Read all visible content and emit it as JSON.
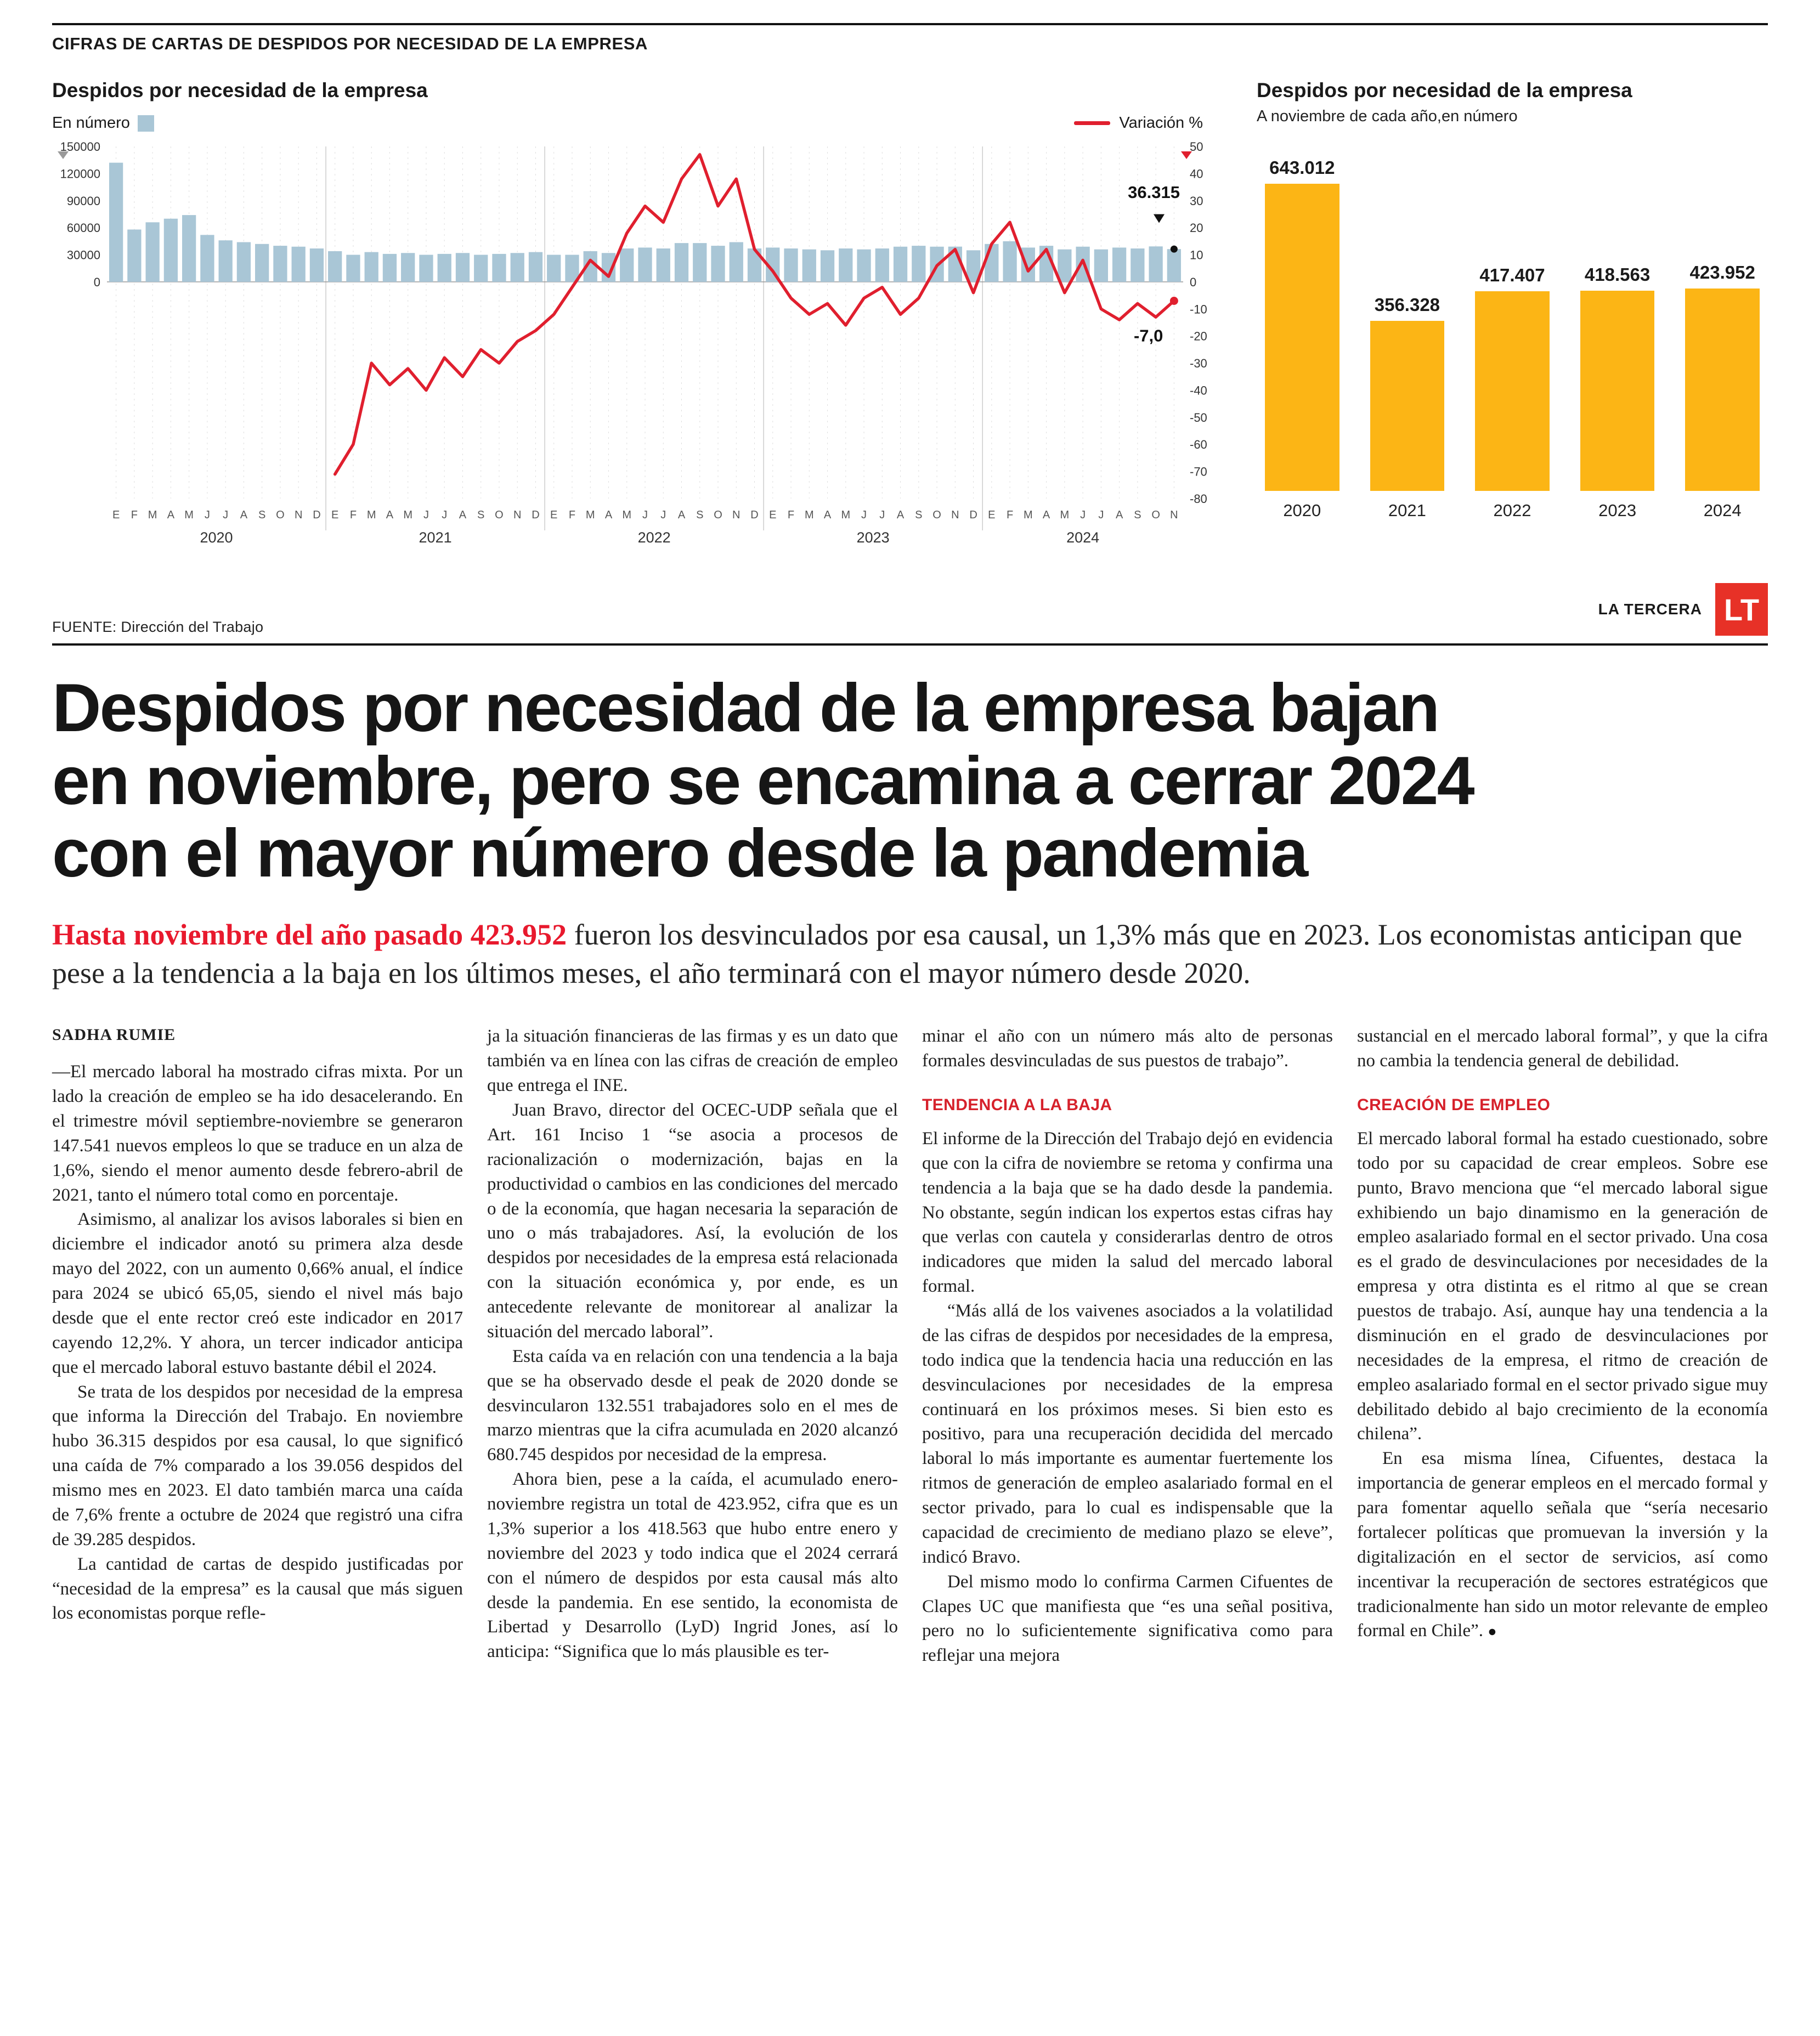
{
  "kicker": "CIFRAS DE CARTAS DE DESPIDOS POR NECESIDAD DE LA EMPRESA",
  "masthead": {
    "brand": "LA TERCERA",
    "logo": "LT"
  },
  "chart_data": [
    {
      "type": "bar",
      "title": "Despidos por necesidad de la empresa",
      "legend": [
        {
          "label": "En número",
          "color": "#a9c6d6",
          "kind": "square"
        },
        {
          "label": "Variación %",
          "color": "#e01f2e",
          "kind": "line"
        }
      ],
      "month_letters": [
        "E",
        "F",
        "M",
        "A",
        "M",
        "J",
        "J",
        "A",
        "S",
        "O",
        "N",
        "D"
      ],
      "years": [
        {
          "label": "2020",
          "months": 12
        },
        {
          "label": "2021",
          "months": 12
        },
        {
          "label": "2022",
          "months": 12
        },
        {
          "label": "2023",
          "months": 12
        },
        {
          "label": "2024",
          "months": 11
        }
      ],
      "bars": [
        132000,
        58000,
        66000,
        70000,
        74000,
        52000,
        46000,
        44000,
        42000,
        40000,
        39000,
        37000,
        34000,
        30000,
        33000,
        31000,
        32000,
        30000,
        31000,
        32000,
        30000,
        31000,
        32000,
        33000,
        30000,
        30000,
        34000,
        32000,
        37000,
        38000,
        37000,
        43000,
        43000,
        40000,
        44000,
        37000,
        38000,
        37000,
        36000,
        35000,
        37000,
        36000,
        37000,
        39000,
        40000,
        39000,
        39056,
        35000,
        42000,
        45000,
        38000,
        40000,
        36000,
        39000,
        36000,
        38000,
        37000,
        39285,
        36315
      ],
      "variation": [
        null,
        null,
        null,
        null,
        null,
        null,
        null,
        null,
        null,
        null,
        null,
        null,
        -71,
        -60,
        -30,
        -38,
        -32,
        -40,
        -28,
        -35,
        -25,
        -30,
        -22,
        -18,
        -12,
        -2,
        8,
        2,
        18,
        28,
        22,
        38,
        47,
        28,
        38,
        12,
        4,
        -6,
        -12,
        -8,
        -16,
        -6,
        -2,
        -12,
        -6,
        6,
        12,
        -4,
        14,
        22,
        4,
        12,
        -4,
        8,
        -10,
        -14,
        -8,
        -13,
        -7
      ],
      "left_axis_ticks": [
        150000,
        120000,
        90000,
        60000,
        30000,
        0
      ],
      "left_axis_max": 150000,
      "right_axis_ticks": [
        50,
        40,
        30,
        20,
        10,
        0,
        -10,
        -20,
        -30,
        -40,
        -50,
        -60,
        -70,
        -80
      ],
      "right_axis_range": [
        -80,
        50
      ],
      "annotations": {
        "last_bar_label": "36.315",
        "last_variation_label": "-7,0"
      },
      "bar_color": "#a9c6d6",
      "line_color": "#e01f2e",
      "source": "FUENTE: Dirección del Trabajo"
    },
    {
      "type": "bar",
      "title": "Despidos por necesidad de la empresa",
      "subtitle": "A noviembre de cada año,en número",
      "categories": [
        "2020",
        "2021",
        "2022",
        "2023",
        "2024"
      ],
      "values": [
        643012,
        356328,
        417407,
        418563,
        423952
      ],
      "value_labels": [
        "643.012",
        "356.328",
        "417.407",
        "418.563",
        "423.952"
      ],
      "bar_color": "#fcb515"
    }
  ],
  "headline_lines": [
    "Despidos por necesidad de la empresa bajan",
    "en noviembre, pero se encamina a cerrar 2024",
    "con el mayor número desde la pandemia"
  ],
  "lede": {
    "lead_red": "Hasta noviembre del año pasado 423.952",
    "rest": " fueron los desvinculados por esa causal, un 1,3% más que en 2023. Los economistas anticipan que pese a la tendencia a la baja en los últimos meses, el año terminará con el mayor número desde 2020."
  },
  "article": {
    "end_mark": "●",
    "columns": [
      {
        "blocks": [
          {
            "t": "byline",
            "text": "SADHA RUMIE"
          },
          {
            "t": "p",
            "cont": true,
            "text": "—El mercado laboral ha mostrado cifras mixta. Por un lado la creación de empleo se ha ido desacelerando. En el trimestre móvil septiembre-noviembre se generaron 147.541 nuevos empleos lo que se traduce en un alza de 1,6%, siendo el menor aumento desde febrero-abril de 2021, tanto el número total como en porcentaje."
          },
          {
            "t": "p",
            "text": "Asimismo, al analizar los avisos laborales si bien en diciembre el indicador anotó su primera alza desde mayo del 2022, con un aumento 0,66% anual, el índice para 2024 se ubicó 65,05, siendo el nivel más bajo desde que el ente rector creó este indicador en 2017 cayendo 12,2%. Y ahora, un tercer indicador anticipa que el mercado laboral estuvo bastante débil el 2024."
          },
          {
            "t": "p",
            "text": "Se trata de los despidos por necesidad de la empresa que informa la Dirección del Trabajo. En noviembre hubo 36.315 despidos por esa causal, lo que significó una caída de 7% comparado a los 39.056 despidos del mismo mes en 2023. El dato también marca una caída de 7,6% frente a octubre de 2024 que registró una cifra de 39.285 despidos."
          },
          {
            "t": "p",
            "text": "La cantidad de cartas de despido justificadas por “necesidad de la empresa” es la causal que más siguen los economistas porque refle-"
          }
        ]
      },
      {
        "blocks": [
          {
            "t": "p",
            "cont": true,
            "text": "ja la situación financieras de las firmas y es un dato que también va en línea con las cifras de creación de empleo que entrega el INE."
          },
          {
            "t": "p",
            "text": "Juan Bravo, director del OCEC-UDP señala que el Art. 161 Inciso 1 “se asocia a procesos de racionalización o modernización, bajas en la productividad o cambios en las condiciones del mercado o de la economía, que hagan necesaria la separación de uno o más trabajadores. Así, la evolución de los despidos por necesidades de la empresa está relacionada con la situación económica y, por ende, es un antecedente relevante de monitorear al analizar la situación del mercado laboral”."
          },
          {
            "t": "p",
            "text": "Esta caída va en relación con una tendencia a la baja que se ha observado desde el peak de 2020 donde se desvincularon 132.551 trabajadores solo en el mes de marzo mientras que la cifra acumulada en 2020 alcanzó 680.745 despidos por necesidad de la empresa."
          },
          {
            "t": "p",
            "text": "Ahora bien, pese a la caída, el acumulado enero-noviembre registra un total de 423.952, cifra que es un 1,3% superior a los 418.563 que hubo entre enero y noviembre del 2023 y todo indica que el 2024 cerrará con el número de despidos por esta causal más alto desde la pandemia. En ese sentido, la economista de Libertad y Desarrollo (LyD) Ingrid Jones, así lo anticipa: “Significa que lo más plausible es ter-"
          }
        ]
      },
      {
        "blocks": [
          {
            "t": "p",
            "cont": true,
            "text": "minar el año con un número más alto de personas formales desvinculadas de sus puestos de trabajo”."
          },
          {
            "t": "sub",
            "text": "TENDENCIA A LA BAJA"
          },
          {
            "t": "p",
            "cont": true,
            "text": "El informe de la Dirección del Trabajo dejó en evidencia que con la cifra de noviembre se retoma y confirma una tendencia a la baja que se ha dado desde la pandemia. No obstante, según indican los expertos estas cifras hay que verlas con cautela y considerarlas dentro de otros indicadores que miden la salud del mercado laboral formal."
          },
          {
            "t": "p",
            "text": "“Más allá de los vaivenes asociados a la volatilidad de las cifras de despidos por necesidades de la empresa, todo indica que la tendencia hacia una reducción en las desvinculaciones por necesidades de la empresa continuará en los próximos meses. Si bien esto es positivo, para una recuperación decidida del mercado laboral lo más importante es aumentar fuertemente los ritmos de generación de empleo asalariado formal en el sector privado, para lo cual es indispensable que la capacidad de crecimiento de mediano plazo se eleve”, indicó Bravo."
          },
          {
            "t": "p",
            "text": "Del mismo modo lo confirma Carmen Cifuentes de Clapes UC que manifiesta que “es una señal positiva, pero no lo suficientemente significativa como para reflejar una mejora"
          }
        ]
      },
      {
        "blocks": [
          {
            "t": "p",
            "cont": true,
            "text": "sustancial en el mercado laboral formal”, y que la cifra no cambia la tendencia general de debilidad."
          },
          {
            "t": "sub",
            "text": "CREACIÓN DE EMPLEO"
          },
          {
            "t": "p",
            "cont": true,
            "text": "El mercado laboral formal ha estado cuestionado, sobre todo por su capacidad de crear empleos. Sobre ese punto, Bravo menciona que “el mercado laboral sigue exhibiendo un bajo dinamismo en la generación de empleo asalariado formal en el sector privado. Una cosa es el grado de desvinculaciones por necesidades de la empresa y otra distinta es el ritmo al que se crean puestos de trabajo. Así, aunque hay una tendencia a la disminución en el grado de desvinculaciones por necesidades de la empresa, el ritmo de creación de empleo asalariado formal en el sector privado sigue muy debilitado debido al bajo crecimiento de la economía chilena”."
          },
          {
            "t": "p",
            "end": true,
            "text": "En esa misma línea, Cifuentes, destaca la importancia de generar empleos en el mercado formal y para fomentar aquello señala que “sería necesario fortalecer políticas que promuevan la inversión y la digitalización en el sector de servicios, así como incentivar la recuperación de sectores estratégicos que tradicionalmente han sido un motor relevante de empleo formal en Chile”."
          }
        ]
      }
    ]
  }
}
